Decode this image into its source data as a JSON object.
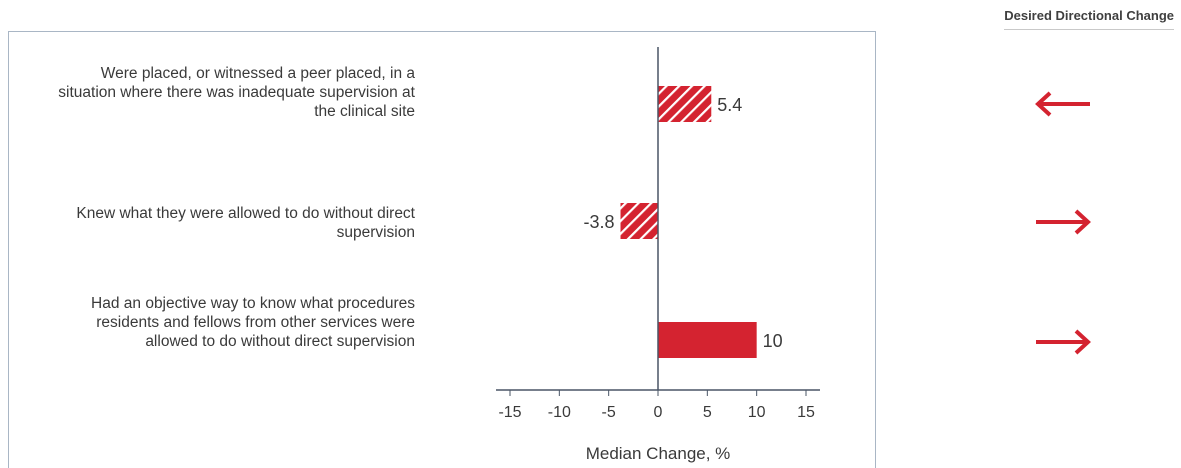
{
  "header": {
    "desired_change_title": "Desired Directional Change"
  },
  "chart_data": {
    "type": "bar",
    "orientation": "horizontal",
    "categories": [
      "Were placed, or witnessed a peer placed, in a situation where there was inadequate supervision at the clinical site",
      "Knew what they were allowed to do without direct supervision",
      "Had an objective way to know what procedures residents and fellows from other services were allowed to do without direct supervision"
    ],
    "values": [
      5.4,
      -3.8,
      10
    ],
    "data_labels": [
      "5.4",
      "-3.8",
      "10"
    ],
    "patterns": [
      "hatched",
      "hatched",
      "solid"
    ],
    "desired_direction": [
      "left",
      "right",
      "right"
    ],
    "xlabel": "Median Change, %",
    "xlim": [
      -15,
      15
    ],
    "xticks": [
      -15,
      -10,
      -5,
      0,
      5,
      10,
      15
    ],
    "xtick_labels": [
      "-15",
      "-10",
      "-5",
      "0",
      "5",
      "10",
      "15"
    ],
    "grid": false,
    "colors": {
      "bar": "#d42330",
      "arrow": "#d42330",
      "axis": "#4a5566",
      "text": "#3a3a3a"
    }
  }
}
